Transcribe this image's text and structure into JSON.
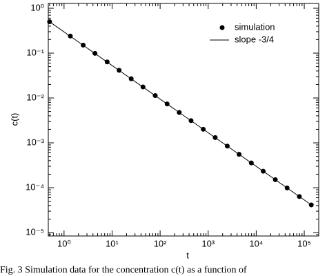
{
  "chart_data": {
    "type": "scatter-line",
    "xlabel": "t",
    "ylabel": "c(t)",
    "caption": "Fig. 3 Simulation data for the concentration c(t) as a function of",
    "xscale": "log",
    "yscale": "log",
    "xlim": [
      0.47,
      200000
    ],
    "ylim": [
      8.4e-06,
      1.28
    ],
    "xticks": [
      {
        "value": 1,
        "label": "10⁰"
      },
      {
        "value": 10,
        "label": "10¹"
      },
      {
        "value": 100,
        "label": "10²"
      },
      {
        "value": 1000,
        "label": "10³"
      },
      {
        "value": 10000,
        "label": "10⁴"
      },
      {
        "value": 100000,
        "label": "10⁵"
      }
    ],
    "yticks": [
      {
        "value": 1e-05,
        "label": "10⁻⁵"
      },
      {
        "value": 0.0001,
        "label": "10⁻⁴"
      },
      {
        "value": 0.001,
        "label": "10⁻³"
      },
      {
        "value": 0.01,
        "label": "10⁻²"
      },
      {
        "value": 0.1,
        "label": "10⁻¹"
      },
      {
        "value": 1,
        "label": "10⁰"
      }
    ],
    "legend": "upper right",
    "series": [
      {
        "name": "simulation",
        "kind": "points",
        "color": "#000000",
        "x": [
          0.5,
          1.35,
          2.5,
          4.4,
          7.9,
          14,
          25,
          44,
          79,
          140,
          250,
          440,
          790,
          1400,
          2500,
          4400,
          7900,
          14000,
          25000,
          44000,
          79000,
          140000
        ],
        "values": [
          0.5,
          0.24,
          0.151,
          0.0988,
          0.0637,
          0.0414,
          0.0268,
          0.0176,
          0.0113,
          0.00736,
          0.00476,
          0.00313,
          0.00201,
          0.00131,
          0.000848,
          0.000556,
          0.000357,
          0.000233,
          0.000151,
          9.88e-05,
          6.36e-05,
          4.14e-05
        ]
      },
      {
        "name": "slope -3/4",
        "kind": "line",
        "color": "#000000",
        "x": [
          0.5,
          150000
        ],
        "values": [
          0.5,
          3.94e-05
        ]
      }
    ]
  }
}
